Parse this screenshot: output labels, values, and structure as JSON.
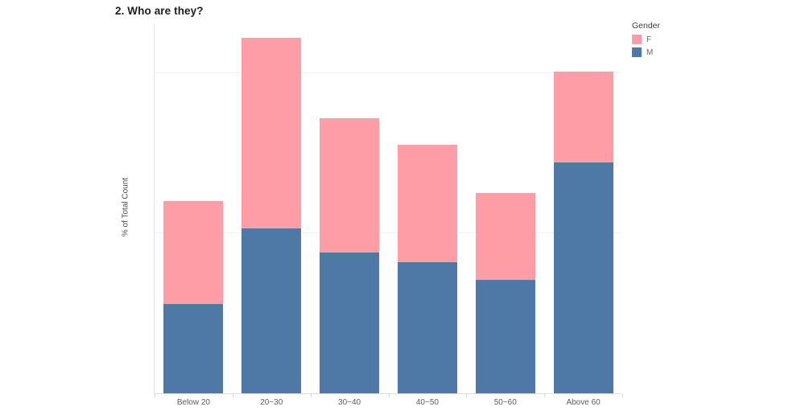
{
  "page": {
    "title": "2. Who are they?"
  },
  "axes": {
    "y_label": "% of Total Count"
  },
  "legend": {
    "title": "Gender",
    "items": [
      {
        "label": "F",
        "color": "#FF9DA7"
      },
      {
        "label": "M",
        "color": "#4E79A7"
      }
    ]
  },
  "chart_data": {
    "type": "bar",
    "stacked": true,
    "title": "2. Who are they?",
    "xlabel": "",
    "ylabel": "% of Total Count",
    "categories": [
      "Below 20",
      "20~30",
      "30~40",
      "40~50",
      "50~60",
      "Above 60"
    ],
    "series": [
      {
        "name": "M",
        "color": "#4E79A7",
        "values": [
          5.6,
          10.3,
          8.8,
          8.2,
          7.1,
          14.4
        ]
      },
      {
        "name": "F",
        "color": "#FF9DA7",
        "values": [
          6.4,
          11.9,
          8.4,
          7.3,
          5.4,
          5.7
        ]
      }
    ],
    "totals_pct": [
      12.0,
      22.2,
      17.2,
      15.5,
      12.5,
      20.1
    ],
    "ylim": [
      0,
      23.1
    ],
    "grid_values_pct": [
      10,
      20
    ],
    "grid_labels_shown": false,
    "legend_position": "top-right",
    "units": "percent of total count"
  }
}
